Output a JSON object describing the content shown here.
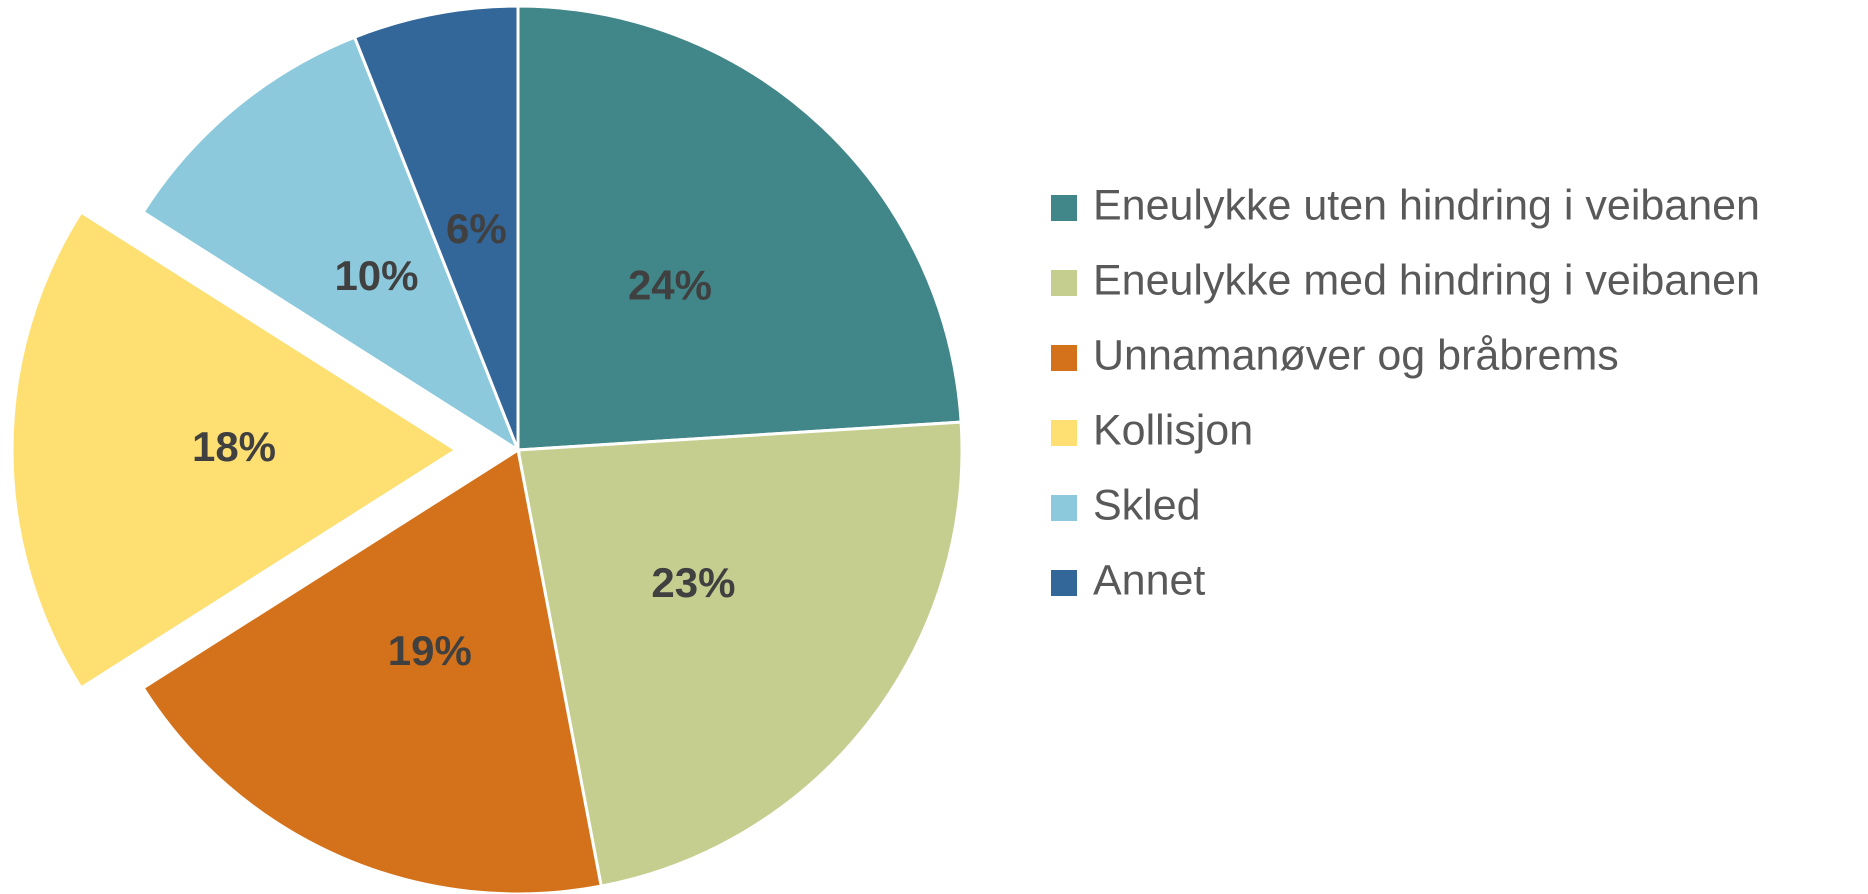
{
  "chart_data": {
    "type": "pie",
    "categories": [
      "Eneulykke uten hindring i veibanen",
      "Eneulykke med hindring i veibanen",
      "Unnamanøver og bråbrems",
      "Kollisjon",
      "Skled",
      "Annet"
    ],
    "values": [
      24,
      23,
      19,
      18,
      10,
      6
    ],
    "value_labels": [
      "24%",
      "23%",
      "19%",
      "18%",
      "10%",
      "6%"
    ],
    "colors": [
      "#41878a",
      "#c5ce8f",
      "#d4721c",
      "#fedf72",
      "#8dc9dc",
      "#336699"
    ],
    "exploded": [
      "Kollisjon"
    ],
    "legend": "right"
  }
}
